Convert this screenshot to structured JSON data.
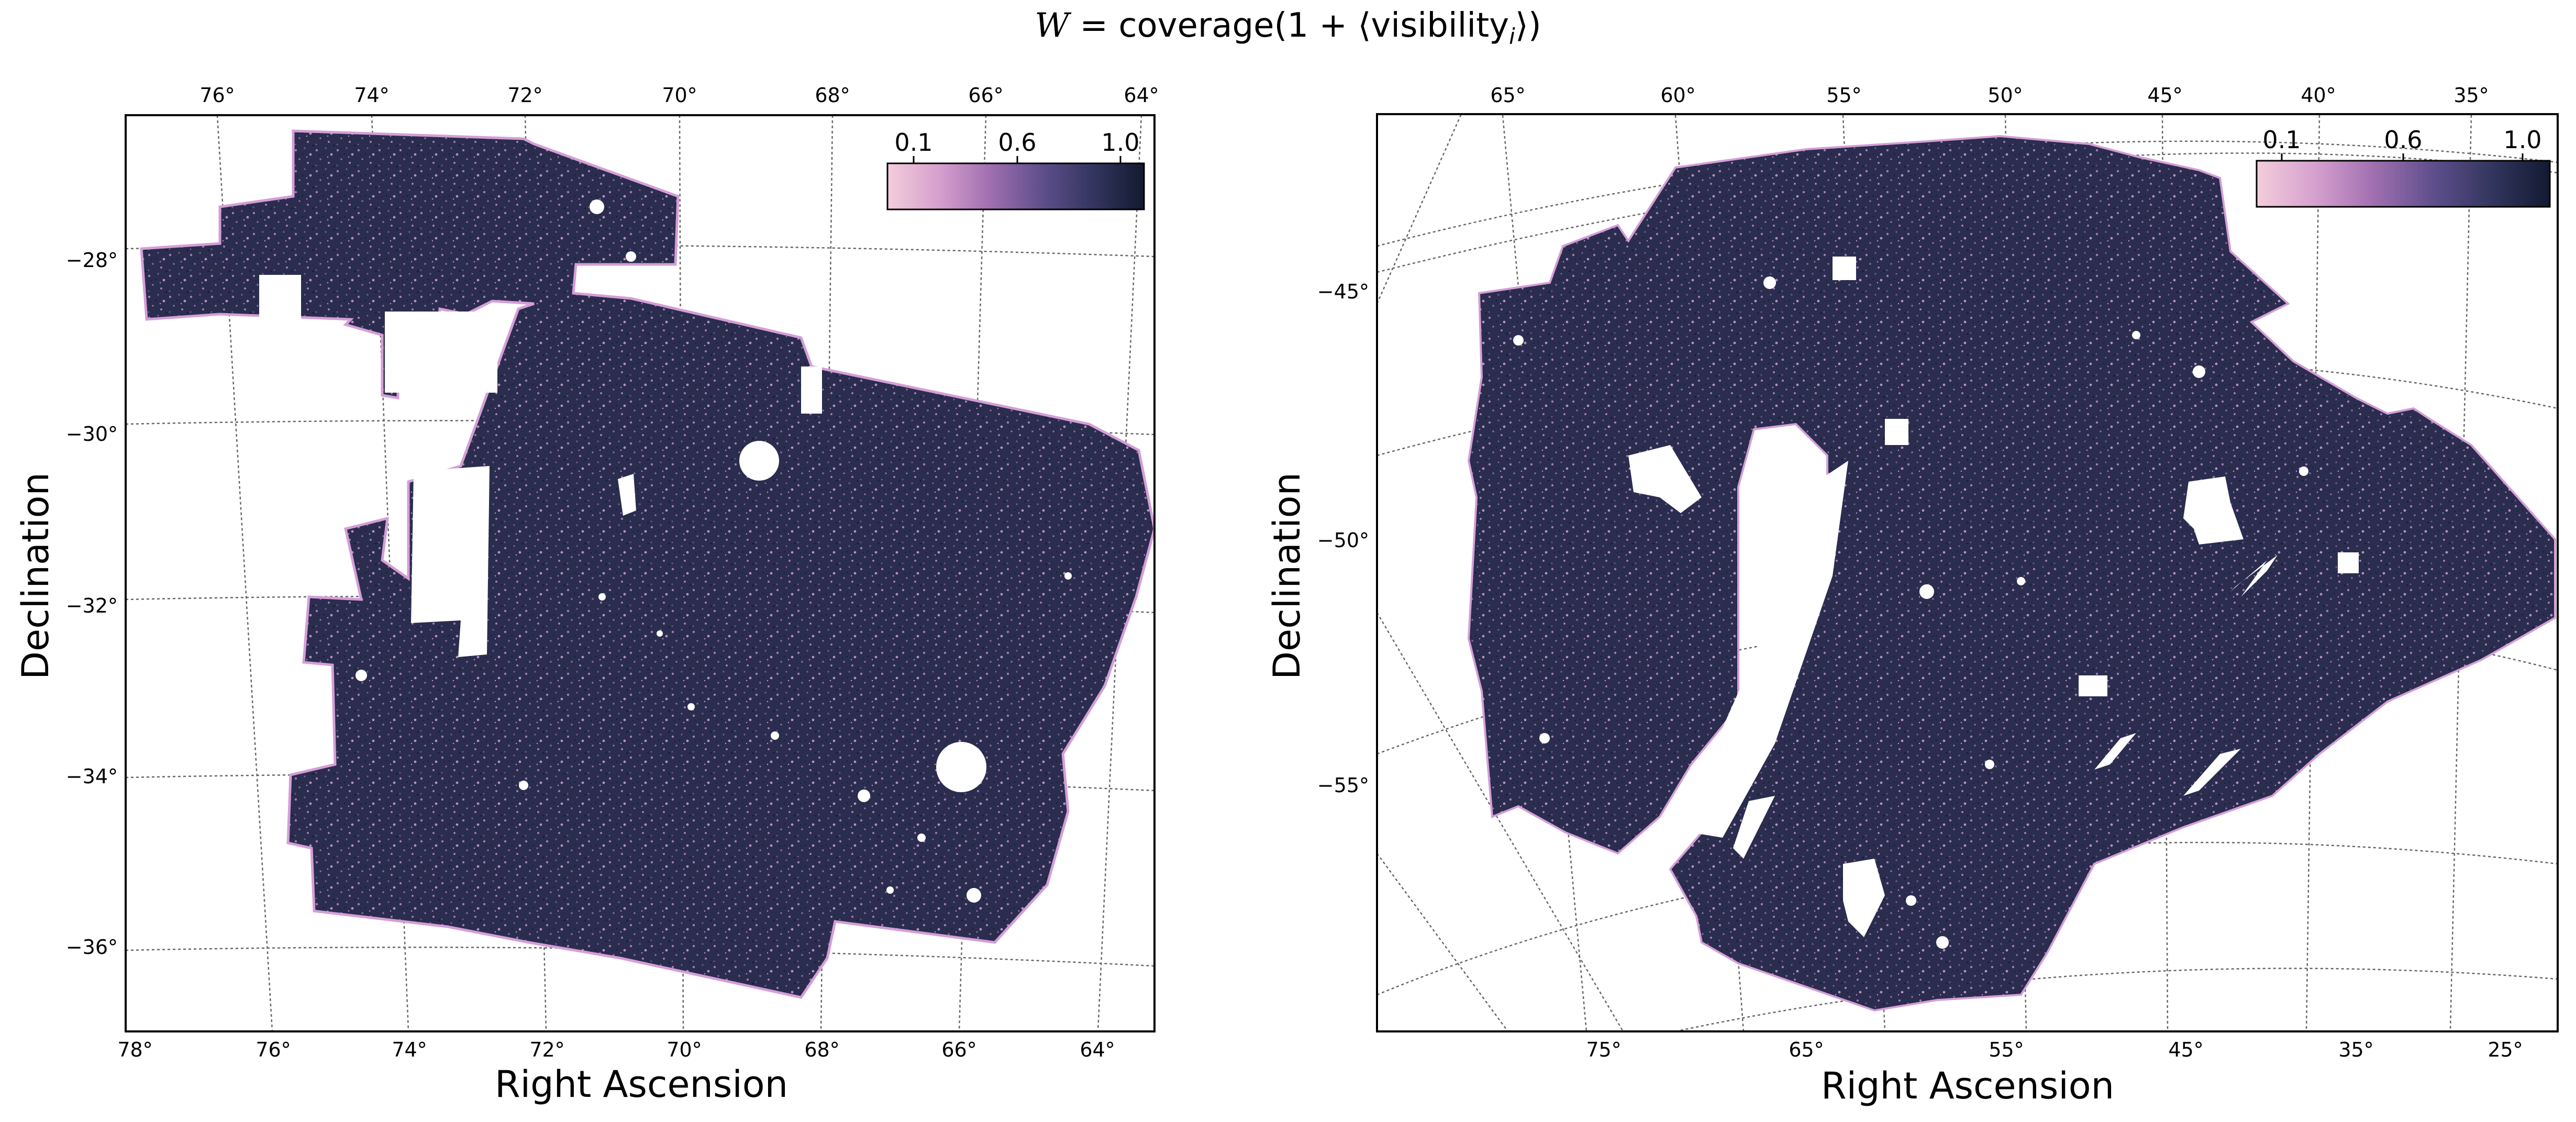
{
  "figure": {
    "suptitle_prefix": "W",
    "suptitle_mid": " = coverage(1 + ⟨visibility",
    "suptitle_sub": "i",
    "suptitle_suffix": "⟩)"
  },
  "colors": {
    "mask_dark": "#2b2d4e",
    "mask_speckle": "#a57cb6",
    "mask_edge": "#d49ed6",
    "cmap": [
      "#f3cddb",
      "#d6a0ce",
      "#a06fb0",
      "#5f4f8c",
      "#33365f",
      "#121a30"
    ]
  },
  "chart_data": [
    {
      "type": "heatmap",
      "title": "",
      "xlabel": "Right Ascension",
      "ylabel": "Declination",
      "bottom_ticks": [
        "78°",
        "76°",
        "74°",
        "72°",
        "70°",
        "68°",
        "66°",
        "64°"
      ],
      "top_ticks": [
        "76°",
        "74°",
        "72°",
        "70°",
        "68°",
        "66°",
        "64°"
      ],
      "left_ticks": [
        "−28°",
        "−30°",
        "−32°",
        "−34°",
        "−36°"
      ],
      "colorbar": {
        "ticks": [
          "0.1",
          "0.6",
          "1.0"
        ],
        "range": [
          0.0,
          1.1
        ],
        "placement": "top-right"
      },
      "grid": true
    },
    {
      "type": "heatmap",
      "title": "",
      "xlabel": "Right Ascension",
      "ylabel": "Declination",
      "bottom_ticks": [
        "75°",
        "65°",
        "55°",
        "45°",
        "35°",
        "25°"
      ],
      "top_ticks": [
        "65°",
        "60°",
        "55°",
        "50°",
        "45°",
        "40°",
        "35°"
      ],
      "left_ticks": [
        "−45°",
        "−50°",
        "−55°"
      ],
      "colorbar": {
        "ticks": [
          "0.1",
          "0.6",
          "1.0"
        ],
        "range": [
          0.0,
          1.1
        ],
        "placement": "top-right"
      },
      "grid": true
    }
  ]
}
